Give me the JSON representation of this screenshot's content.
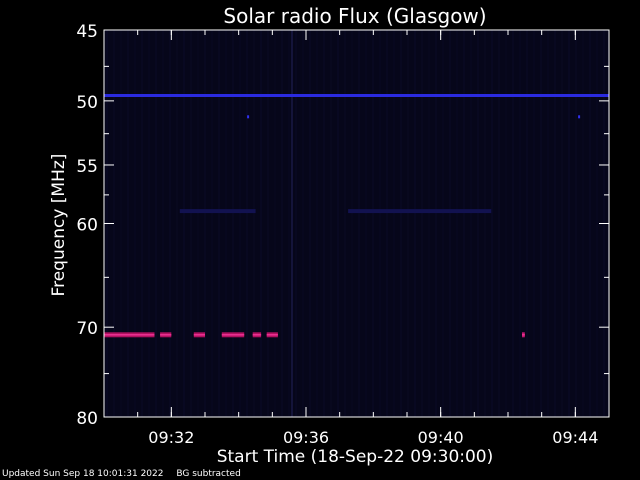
{
  "chart_data": {
    "type": "heatmap",
    "title": "Solar radio Flux (Glasgow)",
    "xlabel": "Start Time (18-Sep-22 09:30:00)",
    "ylabel": "Frequency [MHz]",
    "x_start": "09:30:00",
    "x_end": "09:45:00",
    "x_tick_labels": [
      "09:32",
      "09:36",
      "09:40",
      "09:44"
    ],
    "y_scale": "log",
    "y_range": [
      45,
      80
    ],
    "y_tick_labels": [
      45,
      50,
      55,
      60,
      70,
      80
    ],
    "background_color": "#06061a",
    "features": [
      {
        "name": "persistent interference line",
        "frequency_mhz": 49.6,
        "start": "09:30:00",
        "end": "09:45:00",
        "intensity": "medium",
        "color": "#2a2ae0"
      },
      {
        "name": "weak emission",
        "frequency_mhz": 58.9,
        "start": "09:32:15",
        "end": "09:34:30",
        "intensity": "low",
        "color": "#121250"
      },
      {
        "name": "weak emission",
        "frequency_mhz": 58.9,
        "start": "09:37:15",
        "end": "09:41:30",
        "intensity": "low",
        "color": "#121250"
      },
      {
        "name": "intense burst",
        "frequency_mhz": 70.8,
        "start": "09:30:00",
        "end": "09:31:30",
        "intensity": "high",
        "color": "#b01060"
      },
      {
        "name": "intense burst",
        "frequency_mhz": 70.8,
        "start": "09:31:40",
        "end": "09:32:00",
        "intensity": "high",
        "color": "#b01060"
      },
      {
        "name": "intense burst",
        "frequency_mhz": 70.8,
        "start": "09:32:40",
        "end": "09:33:00",
        "intensity": "high",
        "color": "#b01060"
      },
      {
        "name": "intense burst",
        "frequency_mhz": 70.8,
        "start": "09:33:30",
        "end": "09:34:10",
        "intensity": "high",
        "color": "#b01060"
      },
      {
        "name": "intense burst",
        "frequency_mhz": 70.8,
        "start": "09:34:25",
        "end": "09:34:40",
        "intensity": "high",
        "color": "#b01060"
      },
      {
        "name": "intense burst",
        "frequency_mhz": 70.8,
        "start": "09:34:50",
        "end": "09:35:10",
        "intensity": "high",
        "color": "#b01060"
      },
      {
        "name": "intense burst",
        "frequency_mhz": 70.8,
        "start": "09:42:25",
        "end": "09:42:30",
        "intensity": "high",
        "color": "#c01870"
      },
      {
        "name": "spike",
        "frequency_mhz": 51.2,
        "start": "09:34:15",
        "end": "09:34:18",
        "intensity": "medium",
        "color": "#3030f0"
      },
      {
        "name": "spike",
        "frequency_mhz": 51.2,
        "start": "09:44:05",
        "end": "09:44:08",
        "intensity": "medium",
        "color": "#3030f0"
      }
    ]
  },
  "footer": {
    "updated": "Updated Sun Sep 18 10:01:31 2022",
    "note": "BG subtracted"
  }
}
